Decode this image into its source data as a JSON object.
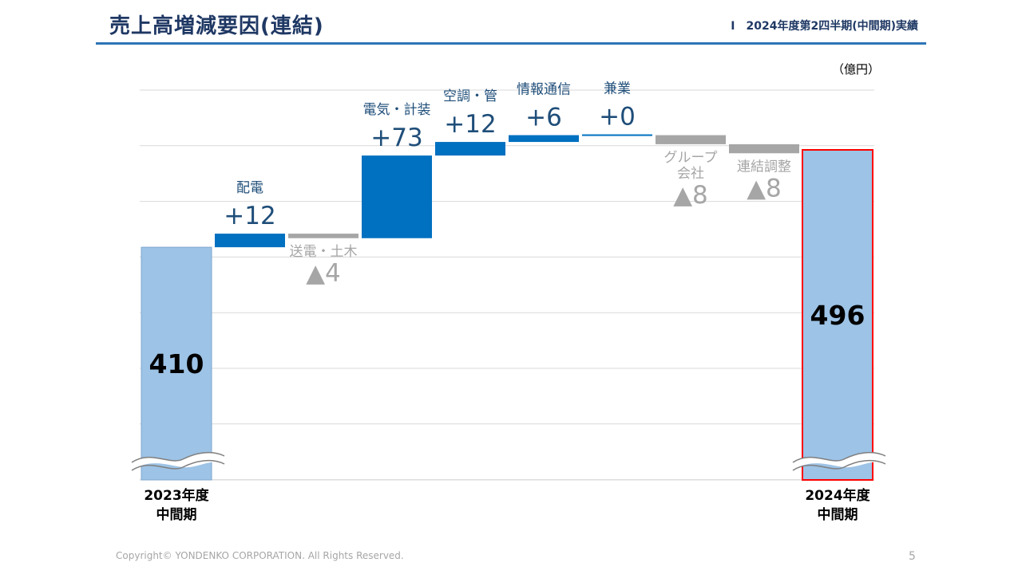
{
  "header": {
    "title": "売上高増減要因(連結)",
    "section": "Ⅰ　2024年度第2四半期(中間期)実績"
  },
  "colors": {
    "title": "#1f3864",
    "rule": "#2e75b6",
    "total_fill": "#9dc3e6",
    "total_edge_end": "#ff0000",
    "increase": "#0070c0",
    "decrease": "#a6a6a6",
    "increase_text": "#1f4e79",
    "decrease_text": "#a6a6a6",
    "grid": "#d9d9d9"
  },
  "chart_data": {
    "type": "bar",
    "subtype": "waterfall",
    "unit": "（億円）",
    "categories": [
      "2023年度\n中間期",
      "配電",
      "送電・土木",
      "電気・計装",
      "空調・管",
      "情報通信",
      "兼業",
      "グループ\n会社",
      "連結調整",
      "2024年度\n中間期"
    ],
    "values": [
      410,
      12,
      -4,
      73,
      12,
      6,
      0,
      -8,
      -8,
      496
    ],
    "kinds": [
      "total",
      "increase",
      "decrease",
      "increase",
      "increase",
      "increase",
      "increase",
      "decrease",
      "decrease",
      "total"
    ],
    "value_labels": [
      "410",
      "+12",
      "▲4",
      "+73",
      "+12",
      "+6",
      "+0",
      "▲8",
      "▲8",
      "496"
    ],
    "category_labels": [
      "",
      "配電",
      "送電・土木",
      "電気・計装",
      "空調・管",
      "情報通信",
      "兼業",
      "グループ\n会社",
      "連結調整",
      ""
    ],
    "x_labels": [
      "2023年度\n中間期",
      "",
      "",
      "",
      "",
      "",
      "",
      "",
      "",
      "2024年度\n中間期"
    ],
    "axis_break": true,
    "y_axis_visible": false,
    "grid": true,
    "ylim": [
      300,
      510
    ]
  },
  "footer": {
    "copyright": "Copyright© YONDENKO CORPORATION. All Rights Reserved.",
    "page": "5"
  }
}
